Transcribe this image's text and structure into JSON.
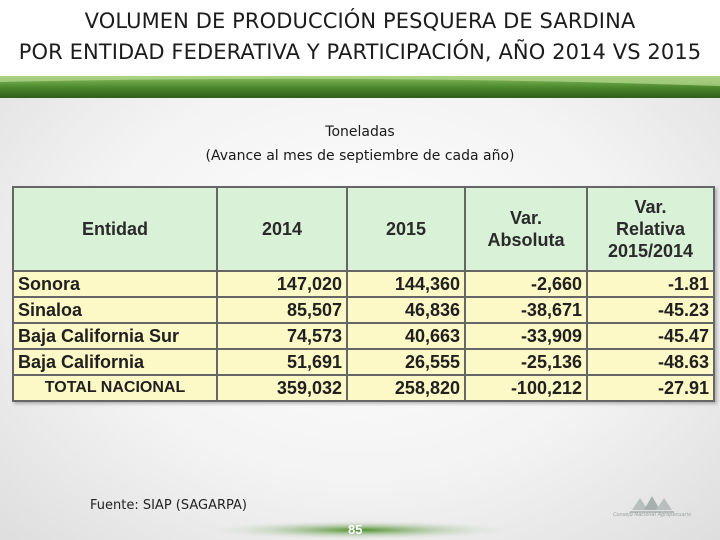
{
  "header": {
    "title_line1": "VOLUMEN DE PRODUCCIÓN PESQUERA  DE SARDINA",
    "title_line2": "POR ENTIDAD FEDERATIVA Y PARTICIPACIÓN, AÑO 2014 VS 2015"
  },
  "subtitle": {
    "line1": "Toneladas",
    "line2": "(Avance al mes de septiembre de cada año)"
  },
  "table": {
    "headers": {
      "entidad": "Entidad",
      "y2014": "2014",
      "y2015": "2015",
      "var_abs_1": "Var.",
      "var_abs_2": "Absoluta",
      "var_rel_1": "Var.",
      "var_rel_2": "Relativa",
      "var_rel_3": "2015/2014"
    },
    "rows": [
      {
        "entidad": "Sonora",
        "y2014": "147,020",
        "y2015": "144,360",
        "var_abs": "-2,660",
        "var_rel": "-1.81"
      },
      {
        "entidad": "Sinaloa",
        "y2014": "85,507",
        "y2015": "46,836",
        "var_abs": "-38,671",
        "var_rel": "-45.23"
      },
      {
        "entidad": "Baja California Sur",
        "y2014": "74,573",
        "y2015": "40,663",
        "var_abs": "-33,909",
        "var_rel": "-45.47"
      },
      {
        "entidad": "Baja California",
        "y2014": "51,691",
        "y2015": "26,555",
        "var_abs": "-25,136",
        "var_rel": "-48.63"
      }
    ],
    "total": {
      "entidad": "TOTAL NACIONAL",
      "y2014": "359,032",
      "y2015": "258,820",
      "var_abs": "-100,212",
      "var_rel": "-27.91"
    }
  },
  "footer": {
    "source": "Fuente: SIAP (SAGARPA)",
    "page_number": "85",
    "logo_text": "Consejo Nacional Agropecuario"
  },
  "colors": {
    "header_green": "#4d8a2e",
    "table_header_bg": "#d9f1d7",
    "table_body_bg": "#fdf9c6"
  }
}
